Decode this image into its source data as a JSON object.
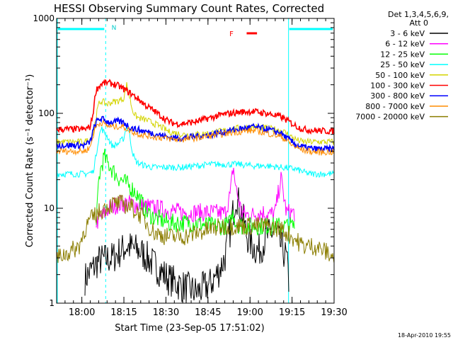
{
  "chart_data": {
    "type": "line",
    "title": "HESSI Observing Summary Count Rates, Corrected",
    "xlabel": "Start Time (23-Sep-05 17:51:02)",
    "ylabel": "Corrected Count Rate (s⁻¹ detector⁻¹)",
    "yscale": "log",
    "ylim": [
      1,
      1000
    ],
    "xlim_minutes_after_1751": [
      0,
      99
    ],
    "x_tick_labels": [
      "18:00",
      "18:15",
      "18:30",
      "18:45",
      "19:00",
      "19:15",
      "19:30"
    ],
    "x_tick_minutes": [
      9,
      24,
      39,
      54,
      69,
      84,
      99
    ],
    "y_tick_labels": [
      "1",
      "10",
      "100",
      "1000"
    ],
    "y_tick_values": [
      1,
      10,
      100,
      1000
    ],
    "legend_header": [
      "Det 1,3,4,5,6,9,",
      "Att 0"
    ],
    "legend_position": "right",
    "annotations": {
      "night_label": "N",
      "flare_label": "F",
      "footer": "18-Apr-2010 19:55"
    },
    "night_intervals_minutes": [
      [
        0,
        17.5
      ],
      [
        82.5,
        99
      ]
    ],
    "flare_interval_minutes": [
      67.8,
      71.5
    ],
    "series": [
      {
        "name": "3 - 6 keV",
        "color": "#000000",
        "x": [
          0,
          10,
          15,
          20,
          25,
          30,
          35,
          40,
          45,
          50,
          55,
          58,
          60,
          62,
          64,
          66,
          68,
          70,
          72,
          75,
          78,
          80,
          82,
          83,
          84,
          99
        ],
        "y": [
          null,
          1.8,
          2.8,
          3.0,
          4.0,
          3.5,
          2.5,
          1.8,
          1.5,
          1.3,
          1.6,
          2.2,
          3.0,
          6.0,
          14.0,
          9.0,
          5.0,
          4.0,
          3.5,
          5.0,
          6.0,
          4.0,
          3.0,
          1.5,
          null,
          null
        ]
      },
      {
        "name": "6 - 12 keV",
        "color": "#ff00ff",
        "x": [
          14,
          16,
          18,
          20,
          22,
          25,
          28,
          30,
          32,
          35,
          40,
          45,
          50,
          55,
          60,
          62,
          63,
          64,
          66,
          68,
          70,
          72,
          74,
          76,
          78,
          80,
          82,
          84,
          85
        ],
        "y": [
          7,
          8,
          9.5,
          10.5,
          11,
          11.2,
          11,
          10.8,
          10.5,
          10,
          9.5,
          9,
          9,
          9,
          8.8,
          14,
          28,
          16,
          9,
          8.5,
          8.5,
          9,
          9,
          8.5,
          9,
          21,
          9,
          9,
          9
        ]
      },
      {
        "name": "12 - 25 keV",
        "color": "#00ff00",
        "x": [
          14,
          15,
          16,
          17,
          18,
          19,
          20,
          22,
          24,
          26,
          28,
          30,
          32,
          35,
          40,
          45,
          50,
          55,
          60,
          62,
          63,
          64,
          66,
          68,
          70,
          75,
          80,
          84,
          85
        ],
        "y": [
          5,
          20,
          28,
          35,
          30,
          28,
          25,
          21,
          19,
          17,
          15,
          12,
          9,
          8,
          7,
          7,
          7,
          6.5,
          6.5,
          7,
          9,
          7,
          6.5,
          6.5,
          6.5,
          6.5,
          6.5,
          6.5,
          6.5
        ]
      },
      {
        "name": "25 - 50 keV",
        "color": "#00ffff",
        "x": [
          0,
          10,
          13,
          14,
          15,
          16,
          17,
          18,
          19,
          20,
          22,
          24,
          25,
          26,
          27,
          28,
          29,
          30,
          32,
          34,
          36,
          40,
          45,
          50,
          55,
          60,
          65,
          70,
          75,
          80,
          85,
          90,
          95,
          99
        ],
        "y": [
          23,
          23,
          24,
          35,
          55,
          70,
          62,
          58,
          50,
          45,
          48,
          55,
          75,
          60,
          40,
          32,
          30,
          29,
          28,
          27,
          27,
          27,
          27,
          28,
          29,
          29,
          29,
          28,
          28,
          27,
          26,
          23,
          23,
          23
        ]
      },
      {
        "name": "50 - 100 keV",
        "color": "#d4d400",
        "x": [
          0,
          10,
          12,
          13,
          14,
          15,
          16,
          17,
          18,
          20,
          22,
          24,
          25,
          26,
          27,
          28,
          29,
          30,
          32,
          34,
          36,
          38,
          40,
          45,
          50,
          55,
          60,
          65,
          70,
          75,
          80,
          82,
          84,
          86,
          88,
          92,
          96,
          99
        ],
        "y": [
          50,
          50,
          54,
          60,
          90,
          125,
          135,
          130,
          125,
          132,
          135,
          145,
          200,
          150,
          110,
          95,
          90,
          88,
          85,
          80,
          75,
          70,
          64,
          60,
          60,
          62,
          66,
          70,
          72,
          70,
          66,
          62,
          56,
          52,
          50,
          50,
          50,
          50
        ]
      },
      {
        "name": "100 - 300 keV",
        "color": "#ff0000",
        "x": [
          0,
          10,
          12,
          13,
          14,
          15,
          16,
          17,
          18,
          20,
          22,
          24,
          26,
          28,
          30,
          32,
          34,
          36,
          38,
          40,
          42,
          45,
          50,
          55,
          60,
          65,
          70,
          75,
          80,
          82,
          84,
          86,
          88,
          92,
          96,
          99
        ],
        "y": [
          68,
          68,
          72,
          100,
          175,
          190,
          205,
          208,
          210,
          205,
          195,
          180,
          165,
          150,
          135,
          120,
          110,
          100,
          90,
          82,
          78,
          78,
          82,
          90,
          98,
          103,
          105,
          100,
          92,
          85,
          78,
          72,
          68,
          66,
          65,
          65
        ]
      },
      {
        "name": "300 - 800 keV",
        "color": "#0000ff",
        "x": [
          0,
          10,
          12,
          13,
          14,
          15,
          16,
          17,
          18,
          20,
          22,
          24,
          26,
          28,
          30,
          32,
          34,
          36,
          38,
          40,
          42,
          45,
          50,
          55,
          60,
          65,
          70,
          75,
          80,
          82,
          84,
          86,
          88,
          92,
          96,
          99
        ],
        "y": [
          46,
          46,
          50,
          65,
          80,
          86,
          88,
          85,
          82,
          80,
          82,
          80,
          72,
          68,
          66,
          64,
          62,
          60,
          58,
          56,
          55,
          55,
          57,
          60,
          64,
          68,
          72,
          68,
          62,
          55,
          50,
          46,
          44,
          42,
          42,
          42
        ]
      },
      {
        "name": "800 - 7000 keV",
        "color": "#ff8c00",
        "x": [
          0,
          10,
          12,
          13,
          14,
          15,
          16,
          17,
          18,
          20,
          22,
          24,
          26,
          28,
          30,
          32,
          34,
          36,
          38,
          40,
          42,
          45,
          50,
          55,
          60,
          65,
          70,
          75,
          80,
          82,
          84,
          86,
          88,
          92,
          96,
          99
        ],
        "y": [
          40,
          40,
          44,
          58,
          72,
          78,
          80,
          77,
          74,
          72,
          73,
          72,
          66,
          62,
          60,
          58,
          57,
          56,
          55,
          54,
          53,
          53,
          55,
          58,
          61,
          64,
          66,
          62,
          57,
          52,
          46,
          43,
          41,
          39,
          39,
          39
        ]
      },
      {
        "name": "7000 - 20000 keV",
        "color": "#8b7d00",
        "x": [
          0,
          5,
          8,
          10,
          12,
          14,
          16,
          18,
          20,
          22,
          24,
          26,
          28,
          30,
          32,
          35,
          40,
          45,
          50,
          55,
          60,
          65,
          70,
          75,
          80,
          84,
          88,
          92,
          96,
          99
        ],
        "y": [
          3,
          3.5,
          4,
          6,
          7.5,
          8.5,
          9.5,
          10.5,
          11,
          11.2,
          11,
          10.5,
          9.5,
          8.5,
          7,
          5.5,
          5,
          5,
          5.5,
          6,
          6.5,
          6.5,
          6.5,
          6.5,
          6,
          5,
          4,
          4,
          3.5,
          3
        ]
      }
    ]
  }
}
